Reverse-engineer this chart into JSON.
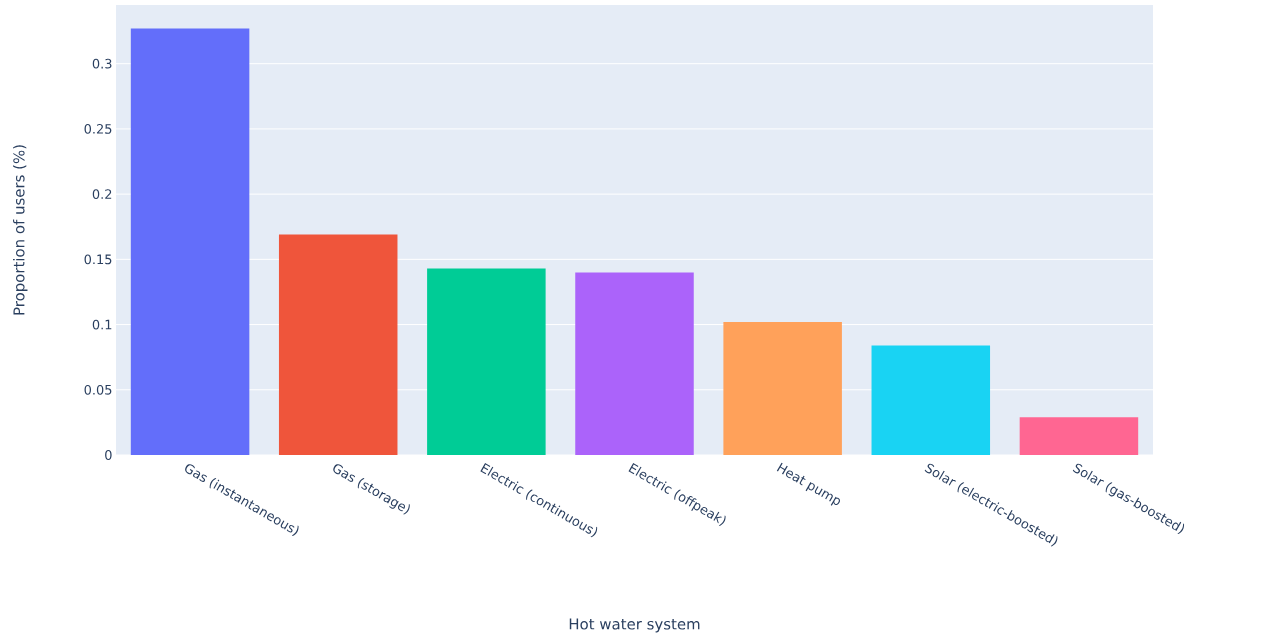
{
  "chart_data": {
    "type": "bar",
    "xlabel": "Hot water system",
    "ylabel": "Proportion of users (%)",
    "categories": [
      "Gas (instantaneous)",
      "Gas (storage)",
      "Electric (continuous)",
      "Electric (offpeak)",
      "Heat pump",
      "Solar (electric-boosted)",
      "Solar (gas-boosted)"
    ],
    "values": [
      0.327,
      0.169,
      0.143,
      0.14,
      0.102,
      0.084,
      0.029
    ],
    "colors": [
      "#636efa",
      "#ef553b",
      "#00cc96",
      "#ab63fa",
      "#ffa15a",
      "#19d3f3",
      "#ff6692"
    ],
    "ylim": [
      0,
      0.345
    ],
    "yticks": [
      0,
      0.05,
      0.1,
      0.15,
      0.2,
      0.25,
      0.3
    ],
    "grid": "y"
  }
}
